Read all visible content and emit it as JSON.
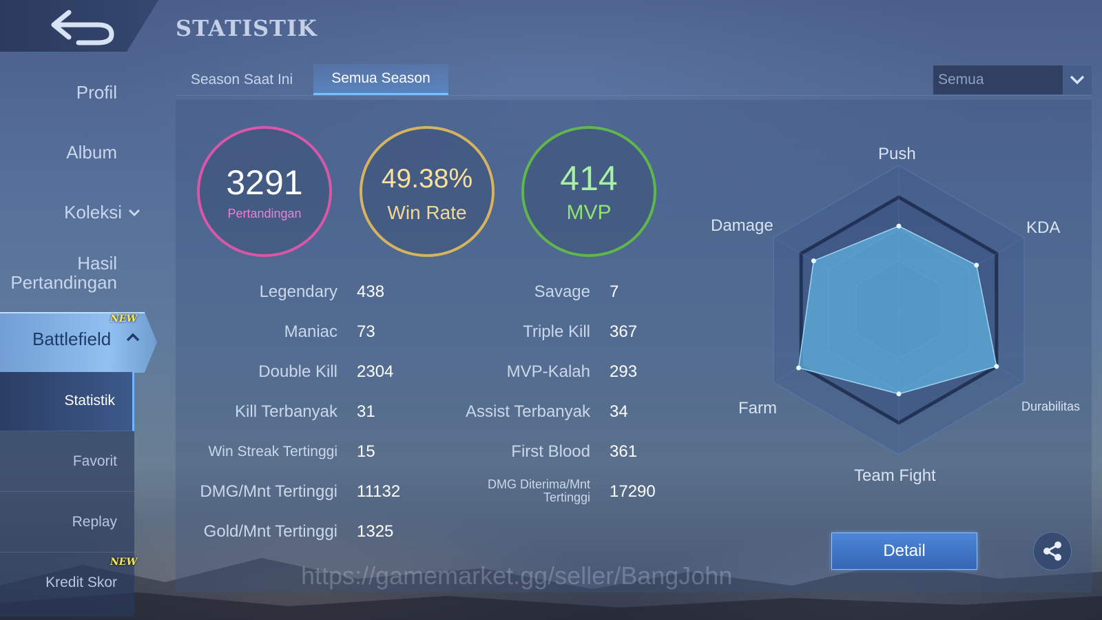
{
  "header": {
    "title": "STATISTIK"
  },
  "sidebar": {
    "items": [
      {
        "label": "Profil"
      },
      {
        "label": "Album"
      },
      {
        "label": "Koleksi"
      },
      {
        "label_line1": "Hasil",
        "label_line2": "Pertandingan"
      }
    ],
    "battlefield": {
      "label": "Battlefield",
      "badge": "NEW"
    },
    "submenu": [
      {
        "label": "Statistik",
        "active": true
      },
      {
        "label": "Favorit"
      },
      {
        "label": "Replay"
      },
      {
        "label": "Kredit Skor",
        "badge": "NEW"
      }
    ]
  },
  "tabs": [
    {
      "label": "Season Saat Ini",
      "active": false
    },
    {
      "label": "Semua Season",
      "active": true
    }
  ],
  "filter": {
    "selected": "Semua"
  },
  "summary": {
    "matches": {
      "value": "3291",
      "label": "Pertandingan",
      "color": "#d857a8"
    },
    "win_rate": {
      "value": "49.38%",
      "label": "Win Rate",
      "color": "#d6b45f"
    },
    "mvp": {
      "value": "414",
      "label": "MVP",
      "color": "#5fb64b"
    }
  },
  "stats_left": [
    {
      "label": "Legendary",
      "value": "438"
    },
    {
      "label": "Maniac",
      "value": "73"
    },
    {
      "label": "Double Kill",
      "value": "2304"
    },
    {
      "label": "Kill Terbanyak",
      "value": "31"
    },
    {
      "label": "Win Streak Tertinggi",
      "value": "15"
    },
    {
      "label": "DMG/Mnt Tertinggi",
      "value": "11132"
    },
    {
      "label": "Gold/Mnt Tertinggi",
      "value": "1325"
    }
  ],
  "stats_right": [
    {
      "label": "Savage",
      "value": "7"
    },
    {
      "label": "Triple Kill",
      "value": "367"
    },
    {
      "label": "MVP-Kalah",
      "value": "293"
    },
    {
      "label": "Assist Terbanyak",
      "value": "34"
    },
    {
      "label": "First Blood",
      "value": "361"
    },
    {
      "label_line1": "DMG Diterima/Mnt",
      "label_line2": "Tertinggi",
      "value": "17290"
    }
  ],
  "radar": {
    "labels": {
      "push": "Push",
      "kda": "KDA",
      "durability": "Durabilitas",
      "teamfight": "Team Fight",
      "farm": "Farm",
      "damage": "Damage"
    },
    "values": {
      "push": 0.58,
      "kda": 0.62,
      "durability": 0.78,
      "teamfight": 0.58,
      "farm": 0.8,
      "damage": 0.68
    },
    "fill_color": "#5fb0de"
  },
  "buttons": {
    "detail": "Detail"
  },
  "watermark": "https://gamemarket.gg/seller/BangJohn"
}
